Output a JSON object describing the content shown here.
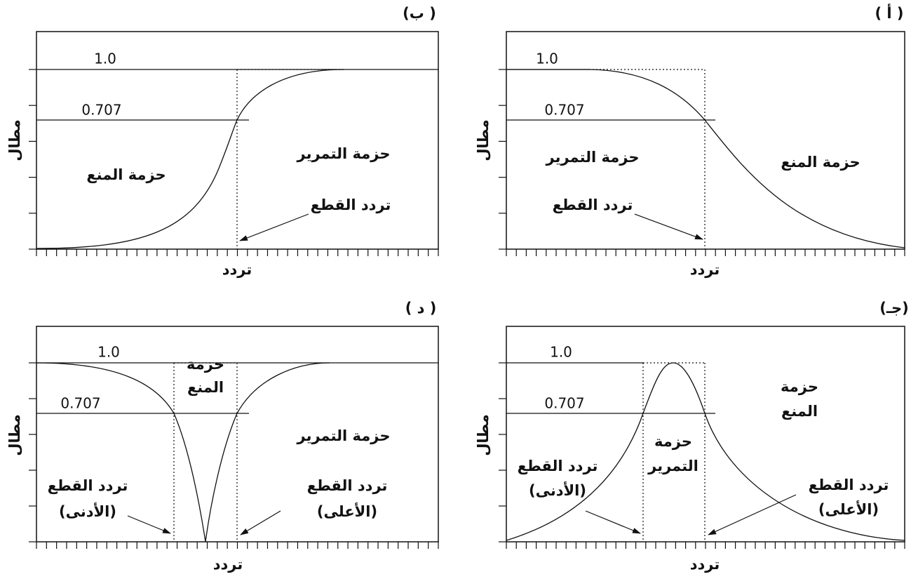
{
  "panels": [
    {
      "label": "( أ )",
      "y_axis": "مطال",
      "x_axis": "تردد",
      "level_high": "1.0",
      "level_cutoff": "0.707",
      "passband": "حزمة التمرير",
      "stopband": "حزمة المنع",
      "cutoff": "تردد القطع"
    },
    {
      "label": "(ب )",
      "y_axis": "مطال",
      "x_axis": "تردد",
      "level_high": "1.0",
      "level_cutoff": "0.707",
      "passband": "حزمة التمرير",
      "stopband": "حزمة المنع",
      "cutoff": "تردد القطع"
    },
    {
      "label": "(جـ)",
      "y_axis": "مطال",
      "x_axis": "تردد",
      "level_high": "1.0",
      "level_cutoff": "0.707",
      "passband": [
        "حزمة",
        "التمرير"
      ],
      "stopband": [
        "حزمة",
        "المنع"
      ],
      "cutoff_low": [
        "تردد القطع",
        "(الأدنى)"
      ],
      "cutoff_high": [
        "تردد القطع",
        "(الأعلى)"
      ]
    },
    {
      "label": "( د )",
      "y_axis": "مطال",
      "x_axis": "تردد",
      "level_high": "1.0",
      "level_cutoff": "0.707",
      "passband": "حزمة التمرير",
      "stopband": [
        "حزمة",
        "المنع"
      ],
      "cutoff_low": [
        "تردد القطع",
        "(الأدنى)"
      ],
      "cutoff_high": [
        "تردد القطع",
        "(الأعلى)"
      ]
    }
  ]
}
